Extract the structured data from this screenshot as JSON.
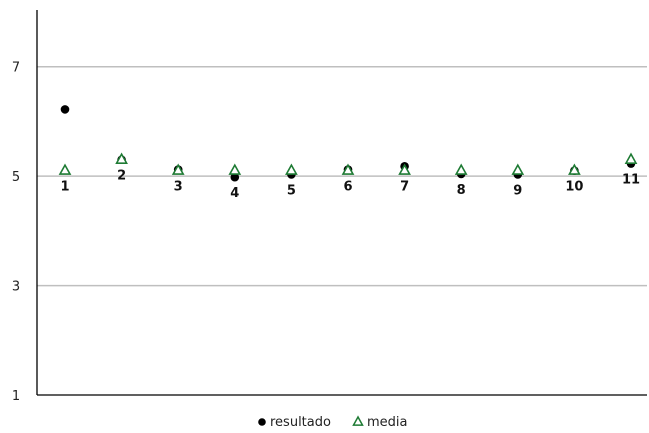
{
  "chart_data": {
    "type": "scatter",
    "title": "",
    "xlabel": "",
    "ylabel": "",
    "ylim": [
      1,
      8
    ],
    "yticks": [
      1,
      3,
      5,
      7
    ],
    "grid": true,
    "legend_position": "bottom",
    "x": [
      1,
      2,
      3,
      4,
      5,
      6,
      7,
      8,
      9,
      10,
      11
    ],
    "point_labels": [
      "1",
      "2",
      "3",
      "4",
      "5",
      "6",
      "7",
      "8",
      "9",
      "10",
      "11"
    ],
    "series": [
      {
        "name": "resultado",
        "marker": "circle",
        "color": "#000000",
        "values": [
          6.22,
          5.3,
          5.12,
          4.98,
          5.03,
          5.12,
          5.18,
          5.04,
          5.03,
          5.1,
          5.23
        ]
      },
      {
        "name": "media",
        "marker": "triangle",
        "color": "#1e7b34",
        "values": [
          5.1,
          5.3,
          5.1,
          5.1,
          5.1,
          5.1,
          5.1,
          5.1,
          5.1,
          5.1,
          5.3
        ]
      }
    ],
    "colors": {
      "grid": "#bfbfbf",
      "axis": "#000000"
    }
  }
}
